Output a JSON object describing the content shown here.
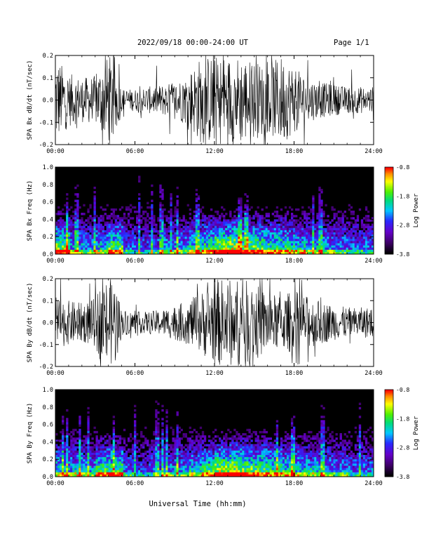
{
  "header": {
    "date_range": "2022/09/18  00:00-24:00 UT",
    "page": "Page 1/1"
  },
  "xaxis": {
    "label": "Universal Time (hh:mm)",
    "ticks": [
      "00:00",
      "06:00",
      "12:00",
      "18:00",
      "24:00"
    ]
  },
  "colors": {
    "background_spec": "#000000",
    "waveform": "#000000"
  },
  "chart_data": [
    {
      "type": "line",
      "ylabel": "SPA Bx dB/dt (nT/sec)",
      "ylim": [
        -0.2,
        0.2
      ],
      "yticks": [
        "0.2",
        "0.1",
        "0.0",
        "-0.1",
        "-0.2"
      ],
      "x_hours": [
        0,
        1,
        2,
        3,
        4,
        4.5,
        5,
        6,
        7,
        8,
        9,
        10,
        11,
        12,
        13,
        14,
        15,
        16,
        17,
        18,
        19,
        20,
        21,
        22,
        23,
        24
      ],
      "envelope": [
        0.2,
        0.12,
        0.1,
        0.11,
        0.2,
        0.2,
        0.05,
        0.05,
        0.06,
        0.07,
        0.08,
        0.12,
        0.2,
        0.2,
        0.2,
        0.2,
        0.18,
        0.15,
        0.2,
        0.15,
        0.1,
        0.08,
        0.07,
        0.06,
        0.06,
        0.06
      ],
      "grid": false
    },
    {
      "type": "heatmap",
      "ylabel": "SPA Bx Freq (Hz)",
      "ylim": [
        0.0,
        1.0
      ],
      "yticks": [
        "1.0",
        "0.8",
        "0.6",
        "0.4",
        "0.2",
        "0.0"
      ],
      "colorbar": {
        "label": "Log Power",
        "ticks": [
          "-0.8",
          "-1.8",
          "-2.8",
          "-3.8"
        ],
        "range": [
          -3.8,
          -0.8
        ]
      },
      "activity_by_hour": [
        0.9,
        0.6,
        0.55,
        0.65,
        0.85,
        0.5,
        0.45,
        0.5,
        0.55,
        0.6,
        0.7,
        0.8,
        0.95,
        1.0,
        0.9,
        0.85,
        0.8,
        0.75,
        0.7,
        0.65,
        0.6,
        0.55,
        0.5,
        0.5
      ]
    },
    {
      "type": "line",
      "ylabel": "SPA By dB/dt (nT/sec)",
      "ylim": [
        -0.2,
        0.2
      ],
      "yticks": [
        "0.2",
        "0.1",
        "0.0",
        "-0.1",
        "-0.2"
      ],
      "x_hours": [
        0,
        1,
        2,
        3,
        3.5,
        4,
        4.5,
        5,
        6,
        7,
        8,
        9,
        10,
        11,
        12,
        13,
        14,
        15,
        16,
        17,
        18,
        19,
        20,
        21,
        22,
        23,
        24
      ],
      "envelope": [
        0.12,
        0.1,
        0.09,
        0.11,
        0.2,
        0.2,
        0.2,
        0.06,
        0.05,
        0.05,
        0.06,
        0.08,
        0.1,
        0.14,
        0.2,
        0.2,
        0.2,
        0.18,
        0.14,
        0.12,
        0.15,
        0.12,
        0.1,
        0.08,
        0.07,
        0.07,
        0.07
      ],
      "grid": false
    },
    {
      "type": "heatmap",
      "ylabel": "SPA By Freq (Hz)",
      "ylim": [
        0.0,
        1.0
      ],
      "yticks": [
        "1.0",
        "0.8",
        "0.6",
        "0.4",
        "0.2",
        "0.0"
      ],
      "colorbar": {
        "label": "Log Power",
        "ticks": [
          "-0.8",
          "-1.8",
          "-2.8",
          "-3.8"
        ],
        "range": [
          -3.8,
          -0.8
        ]
      },
      "activity_by_hour": [
        0.7,
        0.65,
        0.6,
        0.8,
        0.85,
        0.5,
        0.45,
        0.5,
        0.55,
        0.6,
        0.7,
        0.8,
        0.95,
        1.0,
        0.9,
        0.85,
        0.8,
        0.75,
        0.7,
        0.65,
        0.6,
        0.55,
        0.5,
        0.5
      ]
    }
  ]
}
